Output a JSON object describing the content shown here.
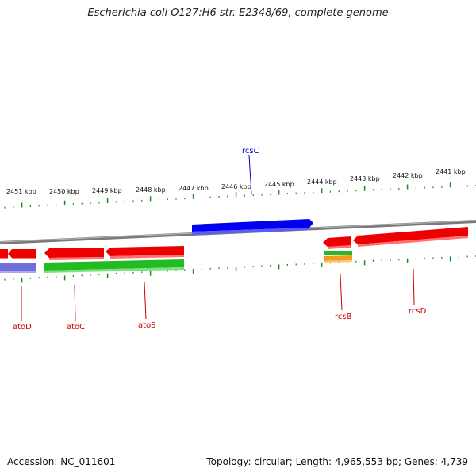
{
  "title": "Escherichia coli O127:H6 str. E2348/69, complete genome",
  "footer": {
    "accession": "Accession: NC_011601",
    "summary": "Topology: circular; Length: 4,965,553 bp; Genes: 4,739"
  },
  "colors": {
    "backbone": "#888888",
    "forward_cds": "#0000ee",
    "reverse_cds": "#ee0000",
    "gene_track": "#22bb22",
    "rna_track": "#f59a20",
    "purple_track": "#7070dd",
    "ticks": "#1a8a1a",
    "label_forward": "#0000cc",
    "label_reverse": "#cc0000"
  },
  "kbp_labels": [
    "2451 kbp",
    "2450 kbp",
    "2449 kbp",
    "2448 kbp",
    "2447 kbp",
    "2446 kbp",
    "2445 kbp",
    "2444 kbp",
    "2443 kbp",
    "2442 kbp",
    "2441 kbp"
  ],
  "genes_forward": [
    {
      "name": "rcsC",
      "strand": "+"
    }
  ],
  "genes_reverse": [
    {
      "name": "atoD",
      "strand": "-"
    },
    {
      "name": "atoC",
      "strand": "-"
    },
    {
      "name": "atoS",
      "strand": "-"
    },
    {
      "name": "rcsB",
      "strand": "-"
    },
    {
      "name": "rcsD",
      "strand": "-"
    }
  ]
}
